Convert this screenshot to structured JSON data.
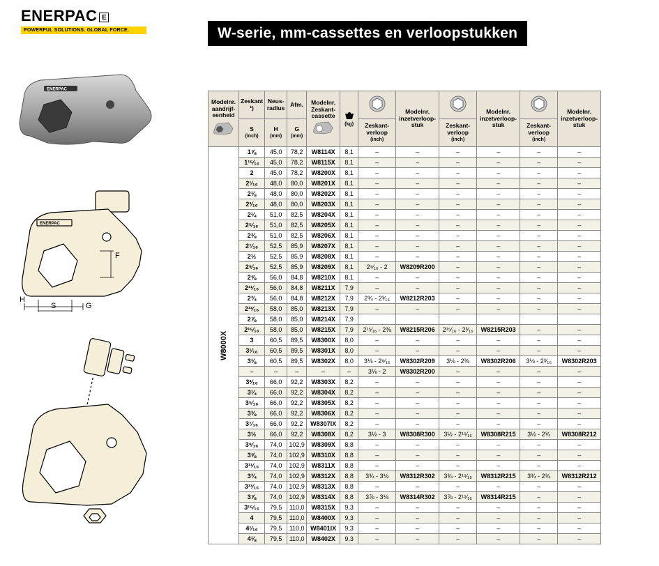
{
  "logo": {
    "brand": "ENERPAC",
    "tagline": "POWERFUL SOLUTIONS. GLOBAL FORCE."
  },
  "title": "W-serie, mm-cassettes en verloopstukken",
  "diagram_labels": {
    "H": "H",
    "S": "S",
    "G": "G",
    "F": "F",
    "brand": "ENERPAC"
  },
  "table": {
    "drive_model": "W8000X",
    "headers": {
      "drive": "Modelnr. aandrijf-eenheid",
      "zeskant": "Zeskant ¹)",
      "neus": "Neus-radius",
      "afm": "Afm.",
      "cassette": "Modelnr. Zeskant-cassette",
      "kg_unit": "(kg)",
      "s": "S",
      "s_unit": "(inch)",
      "h": "H",
      "h_unit": "(mm)",
      "g": "G",
      "g_unit": "(mm)",
      "verloop": "Zeskant-verloop",
      "verloop_unit": "(inch)",
      "stuk": "Modelnr. inzetverloop-stuk"
    },
    "rows": [
      {
        "s": "1⅞",
        "h": "45,0",
        "g": "78,2",
        "m": "W8114X",
        "kg": "8,1",
        "v1": "–",
        "p1": "–",
        "v2": "–",
        "p2": "–",
        "v3": "–",
        "p3": "–",
        "alt": 0
      },
      {
        "s": "1¹⁵⁄₁₆",
        "h": "45,0",
        "g": "78,2",
        "m": "W8115X",
        "kg": "8,1",
        "v1": "–",
        "p1": "–",
        "v2": "–",
        "p2": "–",
        "v3": "–",
        "p3": "–",
        "alt": 1
      },
      {
        "s": "2",
        "h": "45,0",
        "g": "78,2",
        "m": "W8200X",
        "kg": "8,1",
        "v1": "–",
        "p1": "–",
        "v2": "–",
        "p2": "–",
        "v3": "–",
        "p3": "–",
        "alt": 0
      },
      {
        "s": "2¹⁄₁₆",
        "h": "48,0",
        "g": "80,0",
        "m": "W8201X",
        "kg": "8,1",
        "v1": "–",
        "p1": "–",
        "v2": "–",
        "p2": "–",
        "v3": "–",
        "p3": "–",
        "alt": 1
      },
      {
        "s": "2⅛",
        "h": "48,0",
        "g": "80,0",
        "m": "W8202X",
        "kg": "8,1",
        "v1": "–",
        "p1": "–",
        "v2": "–",
        "p2": "–",
        "v3": "–",
        "p3": "–",
        "alt": 0
      },
      {
        "s": "2³⁄₁₆",
        "h": "48,0",
        "g": "80,0",
        "m": "W8203X",
        "kg": "8,1",
        "v1": "–",
        "p1": "–",
        "v2": "–",
        "p2": "–",
        "v3": "–",
        "p3": "–",
        "alt": 1
      },
      {
        "s": "2¼",
        "h": "51,0",
        "g": "82,5",
        "m": "W8204X",
        "kg": "8,1",
        "v1": "–",
        "p1": "–",
        "v2": "–",
        "p2": "–",
        "v3": "–",
        "p3": "–",
        "alt": 0
      },
      {
        "s": "2⁵⁄₁₆",
        "h": "51,0",
        "g": "82,5",
        "m": "W8205X",
        "kg": "8,1",
        "v1": "–",
        "p1": "–",
        "v2": "–",
        "p2": "–",
        "v3": "–",
        "p3": "–",
        "alt": 1
      },
      {
        "s": "2⅜",
        "h": "51,0",
        "g": "82,5",
        "m": "W8206X",
        "kg": "8,1",
        "v1": "–",
        "p1": "–",
        "v2": "–",
        "p2": "–",
        "v3": "–",
        "p3": "–",
        "alt": 0
      },
      {
        "s": "2⁷⁄₁₆",
        "h": "52,5",
        "g": "85,9",
        "m": "W8207X",
        "kg": "8,1",
        "v1": "–",
        "p1": "–",
        "v2": "–",
        "p2": "–",
        "v3": "–",
        "p3": "–",
        "alt": 1
      },
      {
        "s": "2½",
        "h": "52,5",
        "g": "85,9",
        "m": "W8208X",
        "kg": "8,1",
        "v1": "–",
        "p1": "–",
        "v2": "–",
        "p2": "–",
        "v3": "–",
        "p3": "–",
        "alt": 0
      },
      {
        "s": "2⁹⁄₁₆",
        "h": "52,5",
        "g": "85,9",
        "m": "W8209X",
        "kg": "8,1",
        "v1": "2⁹⁄₁₆ - 2",
        "p1": "W8209R200",
        "v2": "–",
        "p2": "–",
        "v3": "–",
        "p3": "–",
        "alt": 1
      },
      {
        "s": "2⅝",
        "h": "56,0",
        "g": "84,8",
        "m": "W8210X",
        "kg": "8,1",
        "v1": "–",
        "p1": "–",
        "v2": "–",
        "p2": "–",
        "v3": "–",
        "p3": "–",
        "alt": 0
      },
      {
        "s": "2¹¹⁄₁₆",
        "h": "56,0",
        "g": "84,8",
        "m": "W8211X",
        "kg": "7,9",
        "v1": "–",
        "p1": "–",
        "v2": "–",
        "p2": "–",
        "v3": "–",
        "p3": "–",
        "alt": 1
      },
      {
        "s": "2¾",
        "h": "56,0",
        "g": "84,8",
        "m": "W8212X",
        "kg": "7,9",
        "v1": "2¾ - 2³⁄₁₆",
        "p1": "W8212R203",
        "v2": "–",
        "p2": "–",
        "v3": "–",
        "p3": "–",
        "alt": 0
      },
      {
        "s": "2¹³⁄₁₆",
        "h": "58,0",
        "g": "85,0",
        "m": "W8213X",
        "kg": "7,9",
        "v1": "–",
        "p1": "–",
        "v2": "–",
        "p2": "–",
        "v3": "–",
        "p3": "–",
        "alt": 1
      },
      {
        "s": "2⅞",
        "h": "58,0",
        "g": "85,0",
        "m": "W8214X",
        "kg": "7,9",
        "v1": "",
        "p1": "",
        "v2": "",
        "p2": "",
        "v3": "",
        "p3": "",
        "alt": 0
      },
      {
        "s": "2¹⁵⁄₁₆",
        "h": "58,0",
        "g": "85,0",
        "m": "W8215X",
        "kg": "7,9",
        "v1": "2¹⁵⁄₁₆ - 2⅜",
        "p1": "W8215R206",
        "v2": "2¹⁵⁄₁₆ - 2³⁄₁₆",
        "p2": "W8215R203",
        "v3": "–",
        "p3": "–",
        "alt": 1
      },
      {
        "s": "3",
        "h": "60,5",
        "g": "89,5",
        "m": "W8300X",
        "kg": "8,0",
        "v1": "–",
        "p1": "–",
        "v2": "–",
        "p2": "–",
        "v3": "–",
        "p3": "–",
        "alt": 0
      },
      {
        "s": "3¹⁄₁₆",
        "h": "60,5",
        "g": "89,5",
        "m": "W8301X",
        "kg": "8,0",
        "v1": "–",
        "p1": "–",
        "v2": "–",
        "p2": "–",
        "v3": "–",
        "p3": "–",
        "alt": 1
      },
      {
        "s": "3⅛",
        "h": "60,5",
        "g": "89,5",
        "m": "W8302X",
        "kg": "8,0",
        "v1": "3⅛ - 2⁹⁄₁₆",
        "p1": "W8302R209",
        "v2": "3⅛ - 2⅜",
        "p2": "W8302R206",
        "v3": "3⅛ - 2³⁄₁₆",
        "p3": "W8302R203",
        "alt": 0
      },
      {
        "s": "–",
        "h": "–",
        "g": "–",
        "m": "–",
        "kg": "–",
        "v1": "3⅛ - 2",
        "p1": "W8302R200",
        "v2": "–",
        "p2": "–",
        "v3": "–",
        "p3": "–",
        "alt": 1
      },
      {
        "s": "3³⁄₁₆",
        "h": "66,0",
        "g": "92,2",
        "m": "W8303X",
        "kg": "8,2",
        "v1": "–",
        "p1": "–",
        "v2": "–",
        "p2": "–",
        "v3": "–",
        "p3": "–",
        "alt": 0
      },
      {
        "s": "3¼",
        "h": "66,0",
        "g": "92,2",
        "m": "W8304X",
        "kg": "8,2",
        "v1": "–",
        "p1": "–",
        "v2": "–",
        "p2": "–",
        "v3": "–",
        "p3": "–",
        "alt": 1
      },
      {
        "s": "3⁵⁄₁₆",
        "h": "66,0",
        "g": "92,2",
        "m": "W8305X",
        "kg": "8,2",
        "v1": "–",
        "p1": "–",
        "v2": "–",
        "p2": "–",
        "v3": "–",
        "p3": "–",
        "alt": 0
      },
      {
        "s": "3⅜",
        "h": "66,0",
        "g": "92,2",
        "m": "W8306X",
        "kg": "8,2",
        "v1": "–",
        "p1": "–",
        "v2": "–",
        "p2": "–",
        "v3": "–",
        "p3": "–",
        "alt": 1
      },
      {
        "s": "3⁷⁄₁₆",
        "h": "66,0",
        "g": "92,2",
        "m": "W8307IX",
        "kg": "8,2",
        "v1": "–",
        "p1": "–",
        "v2": "–",
        "p2": "–",
        "v3": "–",
        "p3": "–",
        "alt": 0
      },
      {
        "s": "3½",
        "h": "66,0",
        "g": "92,2",
        "m": "W8308X",
        "kg": "8,2",
        "v1": "3½ - 3",
        "p1": "W8308R300",
        "v2": "3½ - 2¹⁵⁄₁₆",
        "p2": "W8308R215",
        "v3": "3½ - 2¾",
        "p3": "W8308R212",
        "alt": 1
      },
      {
        "s": "3⁹⁄₁₆",
        "h": "74,0",
        "g": "102,9",
        "m": "W8309X",
        "kg": "8,8",
        "v1": "–",
        "p1": "–",
        "v2": "–",
        "p2": "–",
        "v3": "–",
        "p3": "–",
        "alt": 0
      },
      {
        "s": "3⅝",
        "h": "74,0",
        "g": "102,9",
        "m": "W8310X",
        "kg": "8,8",
        "v1": "–",
        "p1": "–",
        "v2": "–",
        "p2": "–",
        "v3": "–",
        "p3": "–",
        "alt": 1
      },
      {
        "s": "3¹¹⁄₁₆",
        "h": "74,0",
        "g": "102,9",
        "m": "W8311X",
        "kg": "8,8",
        "v1": "–",
        "p1": "–",
        "v2": "–",
        "p2": "–",
        "v3": "–",
        "p3": "–",
        "alt": 0
      },
      {
        "s": "3¾",
        "h": "74,0",
        "g": "102,9",
        "m": "W8312X",
        "kg": "8,8",
        "v1": "3¾ - 3⅛",
        "p1": "W8312R302",
        "v2": "3¾ - 2¹⁵⁄₁₆",
        "p2": "W8312R215",
        "v3": "3¾ - 2¾",
        "p3": "W8312R212",
        "alt": 1
      },
      {
        "s": "3¹³⁄₁₆",
        "h": "74,0",
        "g": "102,9",
        "m": "W8313X",
        "kg": "8,8",
        "v1": "–",
        "p1": "–",
        "v2": "–",
        "p2": "–",
        "v3": "–",
        "p3": "–",
        "alt": 0
      },
      {
        "s": "3⅞",
        "h": "74,0",
        "g": "102,9",
        "m": "W8314X",
        "kg": "8,8",
        "v1": "3⅞ - 3⅛",
        "p1": "W8314R302",
        "v2": "3⅞ - 2¹⁵⁄₁₆",
        "p2": "W8314R215",
        "v3": "–",
        "p3": "–",
        "alt": 1
      },
      {
        "s": "3¹⁵⁄₁₆",
        "h": "79,5",
        "g": "110,0",
        "m": "W8315X",
        "kg": "9,3",
        "v1": "–",
        "p1": "–",
        "v2": "–",
        "p2": "–",
        "v3": "–",
        "p3": "–",
        "alt": 0
      },
      {
        "s": "4",
        "h": "79,5",
        "g": "110,0",
        "m": "W8400X",
        "kg": "9,3",
        "v1": "–",
        "p1": "–",
        "v2": "–",
        "p2": "–",
        "v3": "–",
        "p3": "–",
        "alt": 1
      },
      {
        "s": "4¹⁄₁₆",
        "h": "79,5",
        "g": "110,0",
        "m": "W8401IX",
        "kg": "9,3",
        "v1": "–",
        "p1": "–",
        "v2": "–",
        "p2": "–",
        "v3": "–",
        "p3": "–",
        "alt": 0
      },
      {
        "s": "4⅛",
        "h": "79,5",
        "g": "110,0",
        "m": "W8402X",
        "kg": "9,3",
        "v1": "–",
        "p1": "–",
        "v2": "–",
        "p2": "–",
        "v3": "–",
        "p3": "–",
        "alt": 1
      }
    ]
  },
  "colors": {
    "header_bg": "#e9e4d7",
    "row_bg": "#ffffff",
    "row_alt_bg": "#f3f0e6",
    "border": "#888888",
    "logo_yellow": "#ffd200",
    "title_bg": "#000000",
    "title_fg": "#ffffff",
    "diagram_fill": "#f5eed8",
    "diagram_stroke": "#000000"
  }
}
